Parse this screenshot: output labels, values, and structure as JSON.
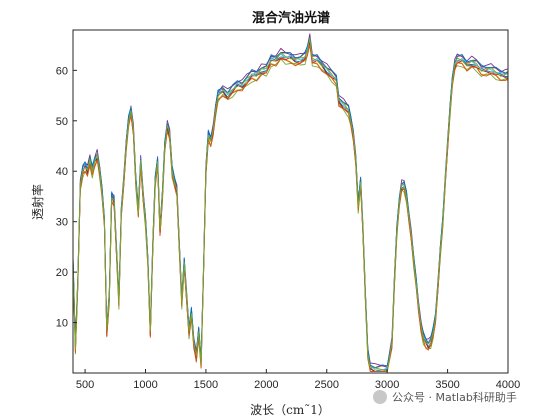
{
  "chart_data": {
    "type": "line",
    "title": "混合汽油光谱",
    "xlabel": "波长（cm˜1）",
    "ylabel": "透射率",
    "xlim": [
      400,
      4000
    ],
    "ylim": [
      0,
      68
    ],
    "xticks": [
      500,
      1000,
      1500,
      2000,
      2500,
      3000,
      3500,
      4000
    ],
    "yticks": [
      10,
      20,
      30,
      40,
      50,
      60
    ],
    "grid": false,
    "legend": "none",
    "base_curve": [
      [
        400,
        22
      ],
      [
        420,
        5
      ],
      [
        440,
        18
      ],
      [
        460,
        37
      ],
      [
        480,
        40
      ],
      [
        500,
        41
      ],
      [
        520,
        40
      ],
      [
        540,
        42
      ],
      [
        560,
        40
      ],
      [
        580,
        42
      ],
      [
        600,
        43
      ],
      [
        620,
        40
      ],
      [
        640,
        36
      ],
      [
        660,
        30
      ],
      [
        680,
        8
      ],
      [
        700,
        15
      ],
      [
        720,
        35
      ],
      [
        740,
        34
      ],
      [
        760,
        24
      ],
      [
        780,
        14
      ],
      [
        800,
        32
      ],
      [
        820,
        38
      ],
      [
        840,
        45
      ],
      [
        860,
        50
      ],
      [
        880,
        52
      ],
      [
        900,
        48
      ],
      [
        920,
        38
      ],
      [
        940,
        32
      ],
      [
        960,
        42
      ],
      [
        980,
        35
      ],
      [
        1000,
        30
      ],
      [
        1020,
        22
      ],
      [
        1040,
        8
      ],
      [
        1060,
        25
      ],
      [
        1080,
        38
      ],
      [
        1100,
        42
      ],
      [
        1120,
        28
      ],
      [
        1140,
        35
      ],
      [
        1160,
        45
      ],
      [
        1180,
        49
      ],
      [
        1200,
        47
      ],
      [
        1220,
        40
      ],
      [
        1240,
        38
      ],
      [
        1260,
        36
      ],
      [
        1280,
        25
      ],
      [
        1300,
        14
      ],
      [
        1320,
        22
      ],
      [
        1340,
        15
      ],
      [
        1360,
        8
      ],
      [
        1380,
        12
      ],
      [
        1400,
        6
      ],
      [
        1420,
        3
      ],
      [
        1440,
        8
      ],
      [
        1460,
        2
      ],
      [
        1480,
        20
      ],
      [
        1500,
        40
      ],
      [
        1520,
        47
      ],
      [
        1540,
        46
      ],
      [
        1560,
        48
      ],
      [
        1580,
        52
      ],
      [
        1600,
        55
      ],
      [
        1640,
        56
      ],
      [
        1680,
        55
      ],
      [
        1720,
        56
      ],
      [
        1760,
        57
      ],
      [
        1800,
        57
      ],
      [
        1840,
        58
      ],
      [
        1880,
        59
      ],
      [
        1920,
        59
      ],
      [
        1960,
        60
      ],
      [
        2000,
        60
      ],
      [
        2040,
        62
      ],
      [
        2080,
        62
      ],
      [
        2120,
        63
      ],
      [
        2160,
        62.5
      ],
      [
        2200,
        62.5
      ],
      [
        2240,
        62
      ],
      [
        2280,
        62
      ],
      [
        2320,
        62.5
      ],
      [
        2340,
        64
      ],
      [
        2360,
        66
      ],
      [
        2380,
        62
      ],
      [
        2420,
        62
      ],
      [
        2460,
        61
      ],
      [
        2500,
        60
      ],
      [
        2540,
        59
      ],
      [
        2580,
        58
      ],
      [
        2600,
        54
      ],
      [
        2640,
        53
      ],
      [
        2680,
        52
      ],
      [
        2700,
        50
      ],
      [
        2720,
        47
      ],
      [
        2740,
        42
      ],
      [
        2760,
        33
      ],
      [
        2780,
        38
      ],
      [
        2800,
        28
      ],
      [
        2820,
        15
      ],
      [
        2840,
        4
      ],
      [
        2860,
        1
      ],
      [
        2900,
        0.5
      ],
      [
        2960,
        0.5
      ],
      [
        3000,
        0.5
      ],
      [
        3040,
        6
      ],
      [
        3060,
        18
      ],
      [
        3080,
        28
      ],
      [
        3100,
        34
      ],
      [
        3120,
        37
      ],
      [
        3140,
        37
      ],
      [
        3160,
        35
      ],
      [
        3180,
        31
      ],
      [
        3200,
        27
      ],
      [
        3220,
        22
      ],
      [
        3240,
        18
      ],
      [
        3260,
        13
      ],
      [
        3280,
        9
      ],
      [
        3300,
        7
      ],
      [
        3320,
        6
      ],
      [
        3340,
        5.5
      ],
      [
        3360,
        6
      ],
      [
        3380,
        8
      ],
      [
        3400,
        11
      ],
      [
        3420,
        17
      ],
      [
        3440,
        24
      ],
      [
        3460,
        30
      ],
      [
        3480,
        38
      ],
      [
        3500,
        45
      ],
      [
        3520,
        52
      ],
      [
        3540,
        58
      ],
      [
        3560,
        61
      ],
      [
        3580,
        62
      ],
      [
        3620,
        62
      ],
      [
        3660,
        61
      ],
      [
        3700,
        61.5
      ],
      [
        3740,
        61
      ],
      [
        3780,
        60
      ],
      [
        3820,
        60
      ],
      [
        3860,
        60
      ],
      [
        3900,
        59.5
      ],
      [
        3940,
        59
      ],
      [
        3980,
        59
      ],
      [
        4000,
        59
      ]
    ],
    "series": [
      {
        "offset": 0.0,
        "color": "#0072BD"
      },
      {
        "offset": 0.6,
        "color": "#D95319"
      },
      {
        "offset": -0.6,
        "color": "#EDB120"
      },
      {
        "offset": 1.0,
        "color": "#7E2F8E"
      },
      {
        "offset": -1.0,
        "color": "#77AC30"
      },
      {
        "offset": 0.3,
        "color": "#4DBEEE"
      },
      {
        "offset": -0.3,
        "color": "#A2142F"
      },
      {
        "offset": 0.8,
        "color": "#0072BD"
      },
      {
        "offset": -0.8,
        "color": "#D95319"
      },
      {
        "offset": 0.15,
        "color": "#77AC30"
      }
    ]
  },
  "watermark": "公众号 · Matlab科研助手",
  "colors": {
    "axis": "#262626",
    "background": "#ffffff"
  }
}
